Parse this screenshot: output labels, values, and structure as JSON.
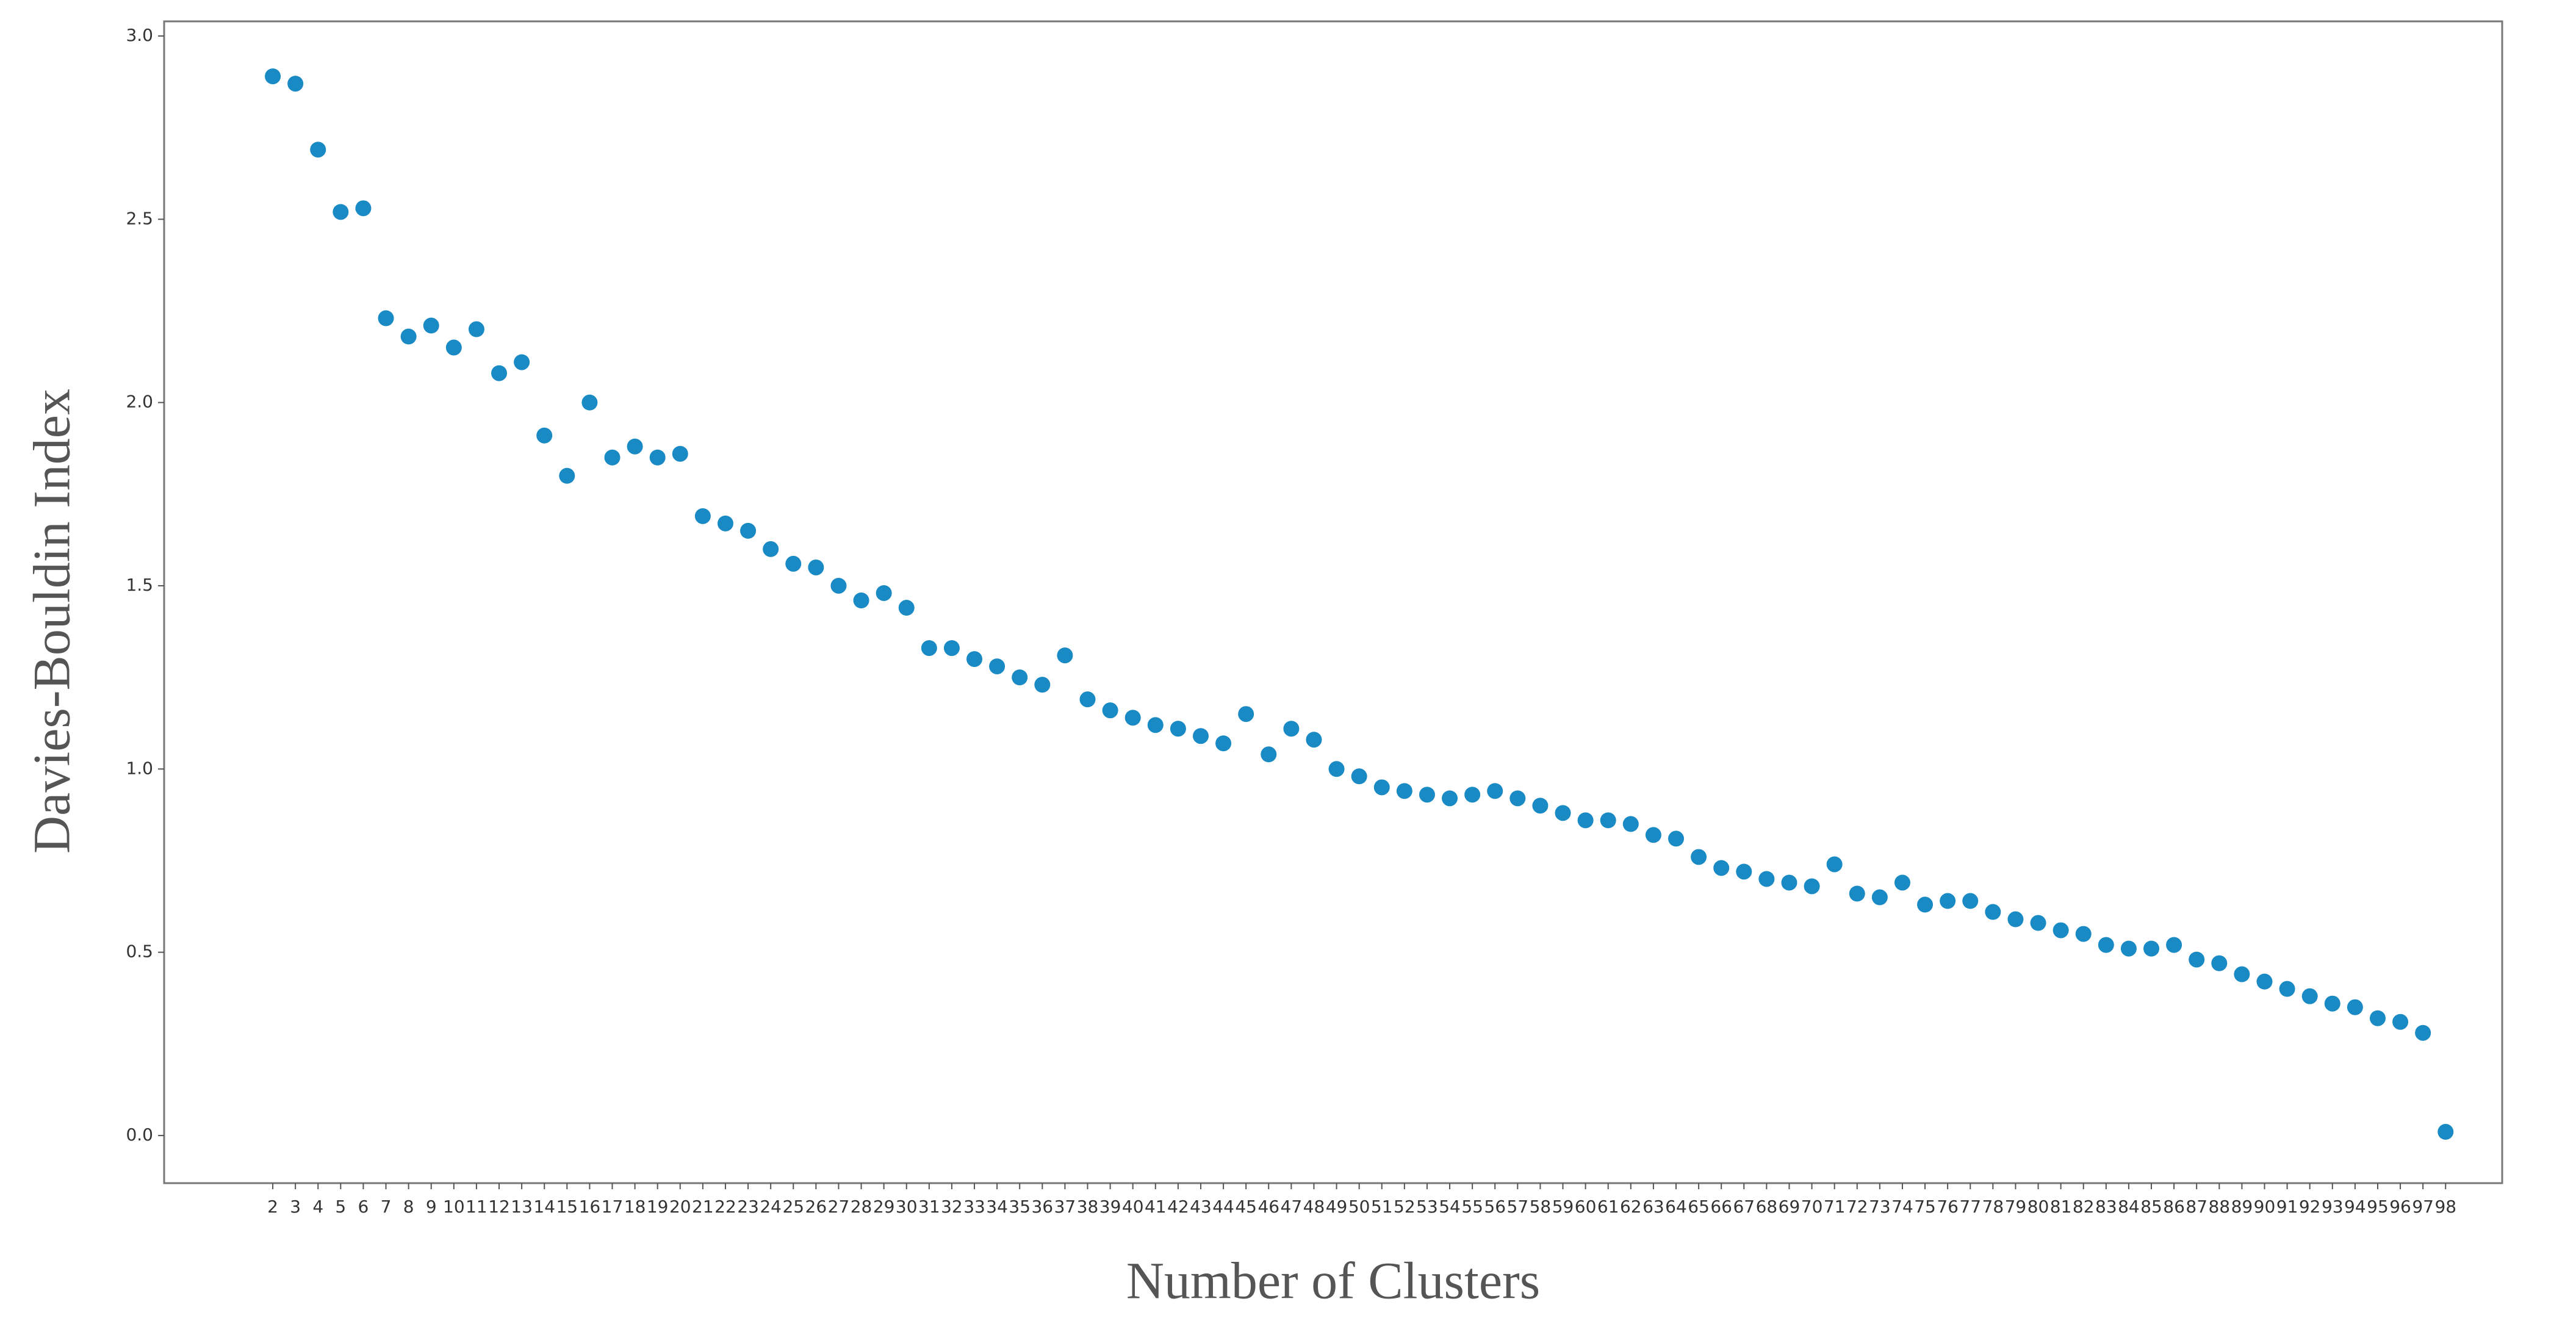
{
  "chart_data": {
    "type": "scatter",
    "xlabel": "Number of Clusters",
    "ylabel": "Davies-Bouldin Index",
    "color": "#1a8ac4",
    "grid": false,
    "x": [
      2,
      3,
      4,
      5,
      6,
      7,
      8,
      9,
      10,
      11,
      12,
      13,
      14,
      15,
      16,
      17,
      18,
      19,
      20,
      21,
      22,
      23,
      24,
      25,
      26,
      27,
      28,
      29,
      30,
      31,
      32,
      33,
      34,
      35,
      36,
      37,
      38,
      39,
      40,
      41,
      42,
      43,
      44,
      45,
      46,
      47,
      48,
      49,
      50,
      51,
      52,
      53,
      54,
      55,
      56,
      57,
      58,
      59,
      60,
      61,
      62,
      63,
      64,
      65,
      66,
      67,
      68,
      69,
      70,
      71,
      72,
      73,
      74,
      75,
      76,
      77,
      78,
      79,
      80,
      81,
      82,
      83,
      84,
      85,
      86,
      87,
      88,
      89,
      90,
      91,
      92,
      93,
      94,
      95,
      96,
      97,
      98
    ],
    "values": [
      2.89,
      2.87,
      2.69,
      2.52,
      2.53,
      2.23,
      2.18,
      2.21,
      2.15,
      2.2,
      2.08,
      2.11,
      1.91,
      1.8,
      2.0,
      1.85,
      1.88,
      1.85,
      1.86,
      1.69,
      1.67,
      1.65,
      1.6,
      1.56,
      1.55,
      1.5,
      1.46,
      1.48,
      1.44,
      1.33,
      1.33,
      1.3,
      1.28,
      1.25,
      1.23,
      1.31,
      1.19,
      1.16,
      1.14,
      1.12,
      1.11,
      1.09,
      1.07,
      1.15,
      1.04,
      1.11,
      1.08,
      1.0,
      0.98,
      0.95,
      0.94,
      0.93,
      0.92,
      0.93,
      0.94,
      0.92,
      0.9,
      0.88,
      0.86,
      0.86,
      0.85,
      0.82,
      0.81,
      0.76,
      0.73,
      0.72,
      0.7,
      0.69,
      0.68,
      0.74,
      0.66,
      0.65,
      0.69,
      0.63,
      0.64,
      0.64,
      0.61,
      0.59,
      0.58,
      0.56,
      0.55,
      0.52,
      0.51,
      0.51,
      0.52,
      0.48,
      0.47,
      0.44,
      0.42,
      0.4,
      0.38,
      0.36,
      0.35,
      0.32,
      0.31,
      0.28,
      0.01
    ],
    "xlim": [
      -2.8,
      100.5
    ],
    "xticks": [
      2,
      3,
      4,
      5,
      6,
      7,
      8,
      9,
      10,
      11,
      12,
      13,
      14,
      15,
      16,
      17,
      18,
      19,
      20,
      21,
      22,
      23,
      24,
      25,
      26,
      27,
      28,
      29,
      30,
      31,
      32,
      33,
      34,
      35,
      36,
      37,
      38,
      39,
      40,
      41,
      42,
      43,
      44,
      45,
      46,
      47,
      48,
      49,
      50,
      51,
      52,
      53,
      54,
      55,
      56,
      57,
      58,
      59,
      60,
      61,
      62,
      63,
      64,
      65,
      66,
      67,
      68,
      69,
      70,
      71,
      72,
      73,
      74,
      75,
      76,
      77,
      78,
      79,
      80,
      81,
      82,
      83,
      84,
      85,
      86,
      87,
      88,
      89,
      90,
      91,
      92,
      93,
      94,
      95,
      96,
      97,
      98
    ],
    "ylim": [
      -0.13,
      3.04
    ],
    "yticks": [
      {
        "value": 0,
        "label": "0.0"
      },
      0.5,
      {
        "value": 1,
        "label": "1.0"
      },
      1.5,
      {
        "value": 2,
        "label": "2.0"
      },
      2.5,
      {
        "value": 3,
        "label": "3.0"
      }
    ]
  }
}
